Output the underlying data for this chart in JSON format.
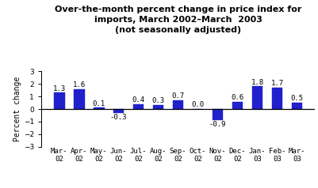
{
  "title_line1": "Over-the-month percent change in price index for",
  "title_line2": "imports, March 2002–March  2003",
  "title_line3": "(not seasonally adjusted)",
  "categories": [
    "Mar-\n02",
    "Apr-\n02",
    "May-\n02",
    "Jun-\n02",
    "Jul-\n02",
    "Aug-\n02",
    "Sep-\n02",
    "Oct-\n02",
    "Nov-\n02",
    "Dec-\n02",
    "Jan-\n03",
    "Feb-\n03",
    "Mar-\n03"
  ],
  "values": [
    1.3,
    1.6,
    0.1,
    -0.3,
    0.4,
    0.3,
    0.7,
    0.0,
    -0.9,
    0.6,
    1.8,
    1.7,
    0.5
  ],
  "bar_color": "#2020cc",
  "ylabel": "Percent change",
  "ylim": [
    -3,
    3
  ],
  "yticks": [
    -3,
    -2,
    -1,
    0,
    1,
    2,
    3
  ],
  "bar_width": 0.55,
  "label_fontsize": 6.5,
  "title_fontsize": 8.0,
  "ylabel_fontsize": 7.0,
  "tick_fontsize": 6.5,
  "background_color": "#ffffff"
}
